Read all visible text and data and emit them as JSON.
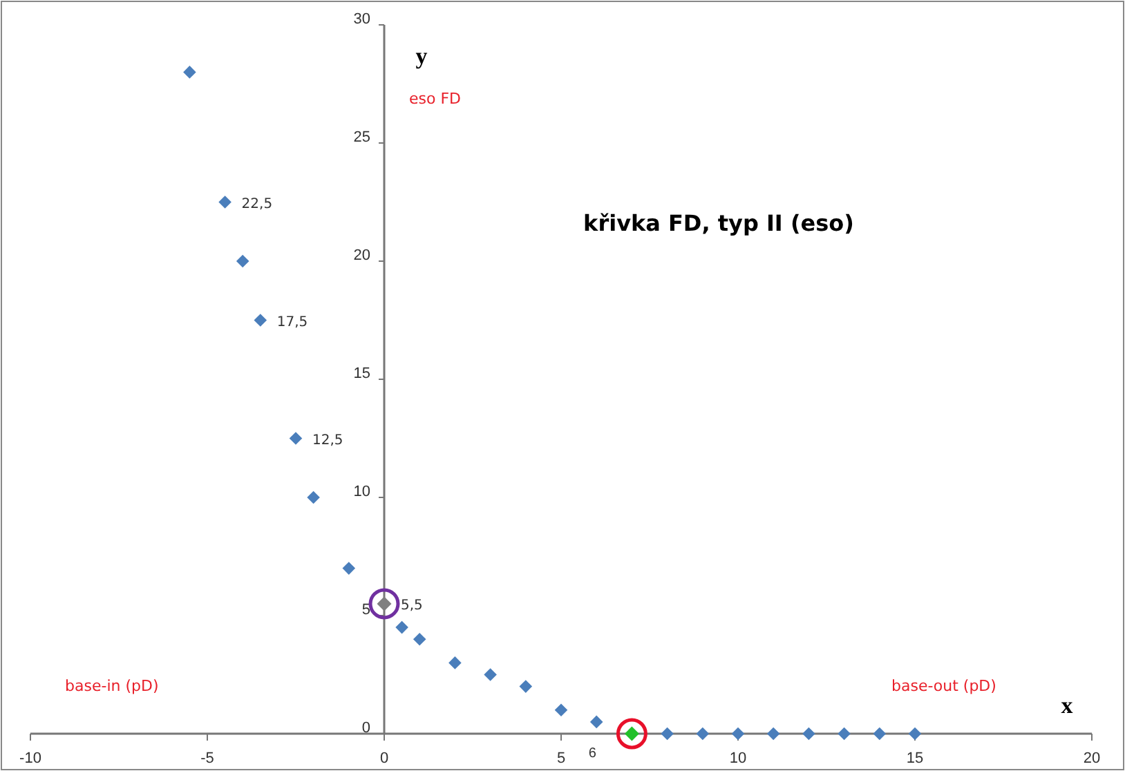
{
  "chart_data": {
    "type": "scatter",
    "title": "křivka FD, typ II (eso)",
    "xlabel": "x",
    "ylabel": "y",
    "x": [
      -5.5,
      -4.5,
      -4,
      -3.5,
      -2.5,
      -2,
      -1,
      0,
      0.5,
      1,
      2,
      3,
      4,
      5,
      6,
      7,
      8,
      9,
      10,
      11,
      12,
      13,
      14,
      15
    ],
    "values": [
      28,
      22.5,
      20,
      17.5,
      12.5,
      10,
      7,
      5.5,
      4.5,
      4,
      3,
      2.5,
      2,
      1,
      0.5,
      0,
      0,
      0,
      0,
      0,
      0,
      0,
      0,
      0
    ],
    "value_labels": [
      null,
      "22,5",
      null,
      "17,5",
      "12,5",
      null,
      null,
      "5,5",
      null,
      null,
      null,
      null,
      null,
      null,
      null,
      null,
      null,
      null,
      null,
      null,
      null,
      null,
      null,
      null
    ],
    "color": "#4a7ebb",
    "colors": [
      "#4a7ebb",
      "#4a7ebb",
      "#4a7ebb",
      "#4a7ebb",
      "#4a7ebb",
      "#4a7ebb",
      "#4a7ebb",
      "#808080",
      "#4a7ebb",
      "#4a7ebb",
      "#4a7ebb",
      "#4a7ebb",
      "#4a7ebb",
      "#4a7ebb",
      "#4a7ebb",
      "#22c02a",
      "#4a7ebb",
      "#4a7ebb",
      "#4a7ebb",
      "#4a7ebb",
      "#4a7ebb",
      "#4a7ebb",
      "#4a7ebb",
      "#4a7ebb"
    ],
    "marker": "diamond",
    "xlim": [
      -10,
      20
    ],
    "ylim": [
      0,
      30
    ],
    "xticks": [
      -10,
      -5,
      0,
      5,
      6,
      10,
      15,
      20
    ],
    "yticks": [
      0,
      5,
      10,
      15,
      20,
      25,
      30
    ],
    "grid": false,
    "annotations": [
      "eso FD",
      "base-in (pD)",
      "base-out (pD)"
    ]
  }
}
